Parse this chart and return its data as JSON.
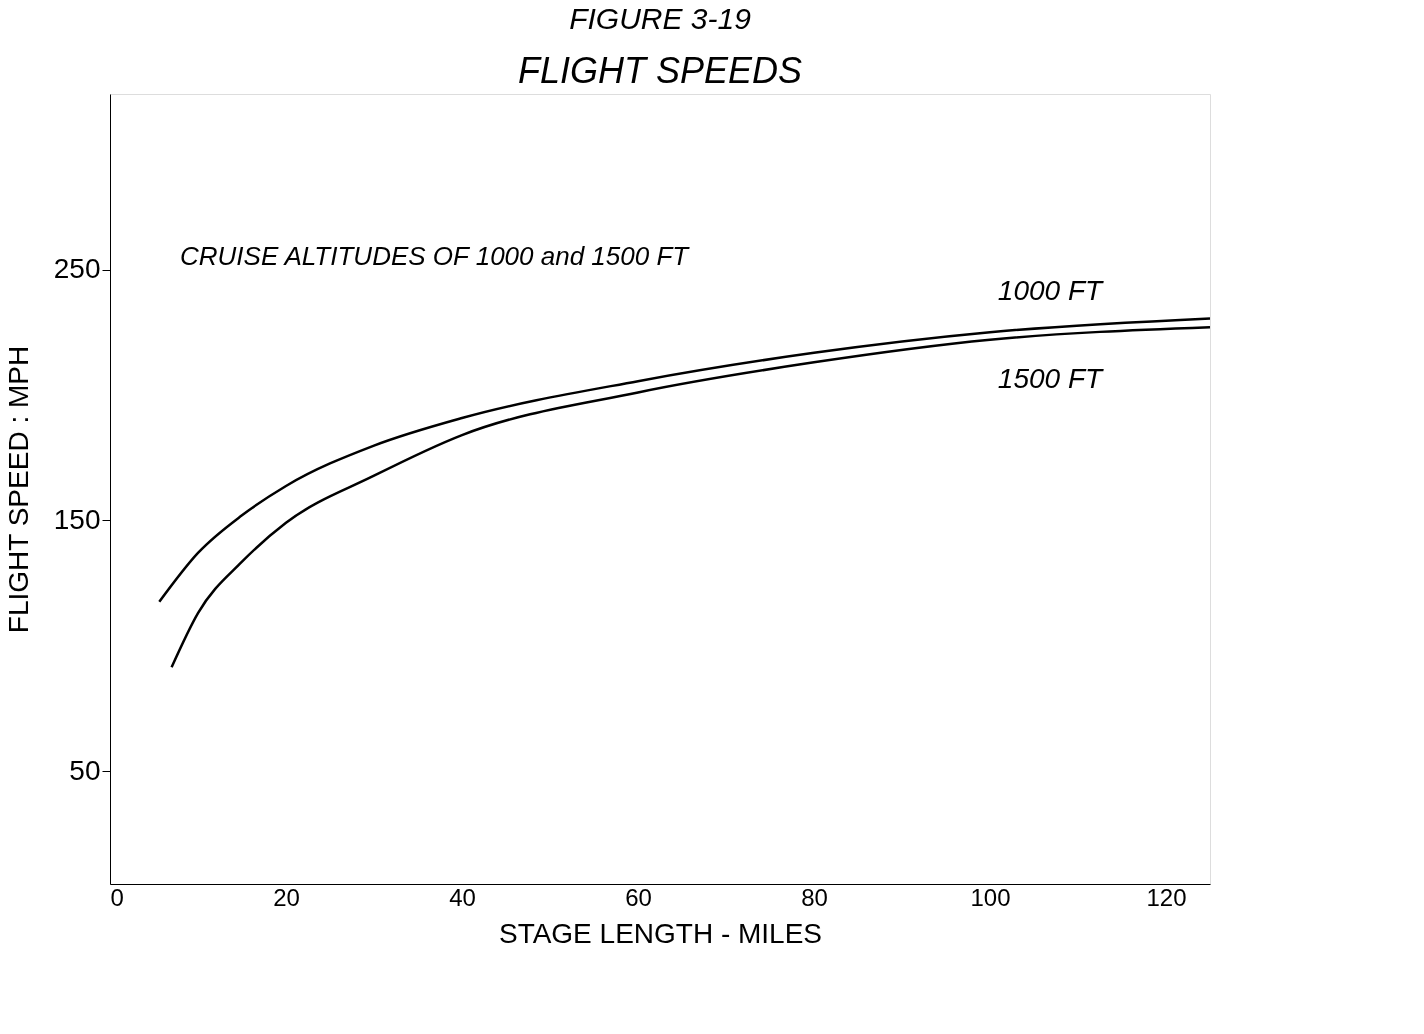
{
  "chart_data": {
    "type": "line",
    "title": "FIGURE 3-19",
    "subtitle": "FLIGHT SPEEDS",
    "xlabel": "STAGE LENGTH - MILES",
    "ylabel": "FLIGHT SPEED : MPH",
    "annotations": [
      "CRUISE ALTITUDES OF 1000 and 1500 FT"
    ],
    "xlim": [
      0,
      125
    ],
    "ylim": [
      5,
      320
    ],
    "xticks": [
      0,
      20,
      40,
      60,
      80,
      100,
      120
    ],
    "yticks": [
      50,
      150,
      250
    ],
    "grid": false,
    "marker": "none",
    "line_style": "solid",
    "series": [
      {
        "name": "1000 FT",
        "color": "#000000",
        "x": [
          5.6,
          10,
          15,
          20,
          30,
          40,
          60,
          80,
          100,
          125
        ],
        "values": [
          117.5,
          137,
          152,
          163.7,
          179.8,
          190.8,
          205.5,
          216.8,
          225,
          230.5
        ]
      },
      {
        "name": "1500 FT",
        "color": "#000000",
        "x": [
          7,
          10,
          15,
          20,
          30,
          40,
          60,
          80,
          100,
          125
        ],
        "values": [
          91.4,
          113,
          133.5,
          149,
          167.8,
          184,
          201,
          213,
          222,
          227
        ]
      }
    ]
  }
}
